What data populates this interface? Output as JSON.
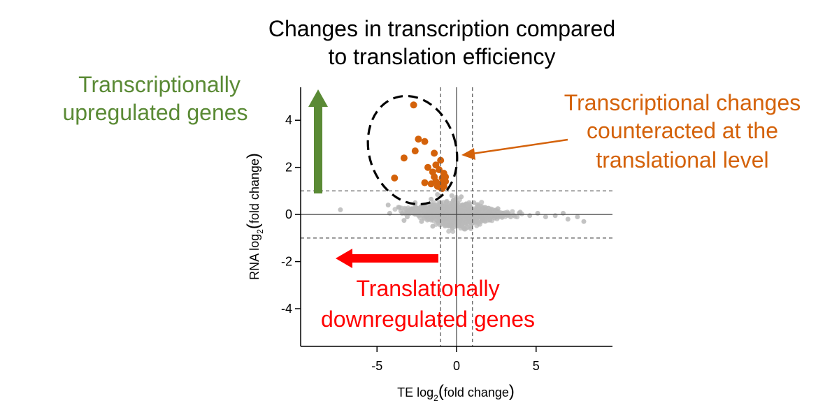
{
  "chart_data": {
    "type": "scatter",
    "title_lines": [
      "Changes in transcription compared",
      "to translation efficiency"
    ],
    "xlabel": {
      "prefix": "TE log",
      "sub": "2",
      "inner": "fold change"
    },
    "ylabel": {
      "prefix": "RNA log",
      "sub": "2",
      "inner": "fold change"
    },
    "xlim": [
      -9.8,
      9.8
    ],
    "ylim": [
      -5.6,
      5.4
    ],
    "xticks": [
      -5,
      0,
      5
    ],
    "yticks": [
      4,
      2,
      0,
      -2,
      -4
    ],
    "xtick_labels": [
      "-5",
      "0",
      "5"
    ],
    "ytick_labels": [
      "4",
      "2",
      "0",
      "-2",
      "-4"
    ],
    "thresholds": {
      "x": [
        -1,
        1
      ],
      "y": [
        -1,
        1
      ]
    },
    "colors": {
      "background_points": "#b9b9b9",
      "highlight_points": "#d4620a",
      "up_arrow": "#5a8a35",
      "down_arrow": "#ff0000",
      "annotation_orange": "#d4620a",
      "axis": "#000000",
      "guide": "#555555"
    },
    "series": [
      {
        "name": "all genes",
        "points": [
          [
            -7.3,
            0.2
          ],
          [
            -4.3,
            0.4
          ],
          [
            -4.2,
            0.05
          ],
          [
            -3.6,
            0.3
          ],
          [
            -3.1,
            -0.1
          ],
          [
            -2.8,
            0.25
          ],
          [
            -2.6,
            0.5
          ],
          [
            -2.4,
            0.15
          ],
          [
            -2.0,
            0.35
          ],
          [
            -1.9,
            -0.05
          ],
          [
            -1.6,
            0.65
          ],
          [
            -1.4,
            0.2
          ],
          [
            -1.2,
            0.85
          ],
          [
            -1.0,
            0.45
          ],
          [
            -0.8,
            -0.2
          ],
          [
            -0.6,
            0.3
          ],
          [
            -0.4,
            -0.45
          ],
          [
            -0.2,
            0.6
          ],
          [
            0.0,
            0.1
          ],
          [
            0.2,
            -0.3
          ],
          [
            0.4,
            0.4
          ],
          [
            0.6,
            -0.1
          ],
          [
            0.8,
            0.2
          ],
          [
            1.0,
            -0.35
          ],
          [
            1.3,
            0.15
          ],
          [
            1.6,
            -0.2
          ],
          [
            2.0,
            0.1
          ],
          [
            2.4,
            -0.15
          ],
          [
            2.9,
            0.05
          ],
          [
            3.4,
            -0.1
          ],
          [
            4.0,
            0.1
          ],
          [
            4.6,
            -0.05
          ],
          [
            5.1,
            0.05
          ],
          [
            5.6,
            -0.1
          ],
          [
            6.2,
            -0.05
          ],
          [
            6.7,
            0.05
          ],
          [
            7.0,
            -0.2
          ],
          [
            7.6,
            -0.1
          ],
          [
            8.0,
            -0.3
          ],
          [
            -3.3,
            -0.25
          ],
          [
            -2.2,
            -0.3
          ],
          [
            -1.5,
            -0.5
          ],
          [
            -0.9,
            0.05
          ],
          [
            -0.3,
            0.8
          ],
          [
            0.3,
            0.75
          ],
          [
            1.1,
            0.5
          ],
          [
            1.8,
            0.3
          ],
          [
            2.6,
            0.25
          ],
          [
            -1.7,
            0.1
          ],
          [
            0.9,
            -0.6
          ]
        ]
      },
      {
        "name": "transcriptional changes counteracted",
        "points": [
          [
            -2.7,
            4.65
          ],
          [
            -2.4,
            3.2
          ],
          [
            -2.6,
            2.7
          ],
          [
            -2.0,
            3.1
          ],
          [
            -3.3,
            2.4
          ],
          [
            -1.4,
            2.6
          ],
          [
            -1.0,
            2.3
          ],
          [
            -1.3,
            2.1
          ],
          [
            -1.1,
            1.9
          ],
          [
            -0.8,
            1.75
          ],
          [
            -0.9,
            1.55
          ],
          [
            -0.7,
            1.4
          ],
          [
            -1.5,
            1.8
          ],
          [
            -1.4,
            1.6
          ],
          [
            -1.3,
            1.4
          ],
          [
            -1.2,
            1.2
          ],
          [
            -1.0,
            1.15
          ],
          [
            -1.0,
            1.3
          ],
          [
            -2.0,
            1.35
          ],
          [
            -3.9,
            1.55
          ],
          [
            -1.8,
            2.0
          ],
          [
            -1.6,
            1.3
          ],
          [
            -0.8,
            1.2
          ],
          [
            -0.9,
            1.1
          ],
          [
            -0.7,
            1.6
          ]
        ]
      }
    ],
    "annotations": [
      {
        "id": "up",
        "lines": [
          "Transcriptionally",
          "upregulated genes"
        ]
      },
      {
        "id": "counteracted",
        "lines": [
          "Transcriptional changes",
          "counteracted at the",
          "translational level"
        ]
      },
      {
        "id": "down",
        "lines": [
          "Translationally",
          "downregulated genes"
        ]
      }
    ]
  }
}
